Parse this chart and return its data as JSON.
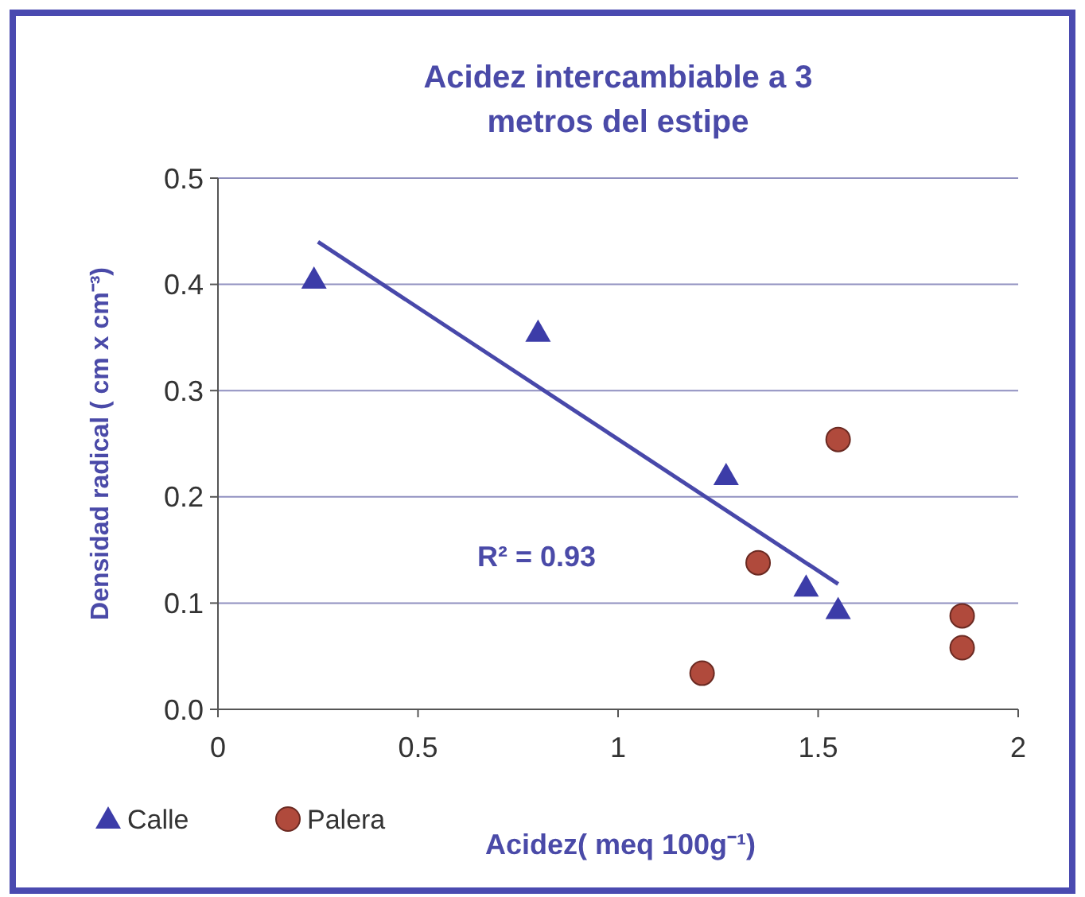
{
  "chart_data": {
    "type": "scatter",
    "title": "Acidez intercambiable a 3 metros del  estipe",
    "xlabel": "Acidez( meq 100g⁻¹)",
    "ylabel": "Densidad radical ( cm x cm⁻³)",
    "xlim": [
      0,
      2
    ],
    "xticks": [
      0,
      0.5,
      1,
      1.5,
      2
    ],
    "ylim": [
      0,
      0.5
    ],
    "yticks": [
      {
        "value": 0,
        "label": "0.0"
      },
      0.1,
      0.2,
      0.3,
      0.4,
      0.5
    ],
    "grid": "y",
    "legend": "bottom left",
    "annotations": [
      "R² = 0.93"
    ],
    "series": [
      {
        "name": "Calle",
        "color": "#3c3ca8",
        "marker": "triangle",
        "x": [
          0.24,
          0.8,
          1.27,
          1.47,
          1.55
        ],
        "values": [
          0.405,
          0.355,
          0.22,
          0.115,
          0.094
        ]
      },
      {
        "name": "Palera",
        "color": "#b04a3c",
        "marker": "circle",
        "x": [
          1.55,
          1.35,
          1.21,
          1.86,
          1.86
        ],
        "values": [
          0.254,
          0.138,
          0.034,
          0.088,
          0.058
        ]
      },
      {
        "type": "line",
        "color": "#4848aa",
        "marker": "none",
        "line_style": "solid",
        "x": [
          0.25,
          1.55
        ],
        "values": [
          0.44,
          0.118
        ]
      }
    ]
  }
}
